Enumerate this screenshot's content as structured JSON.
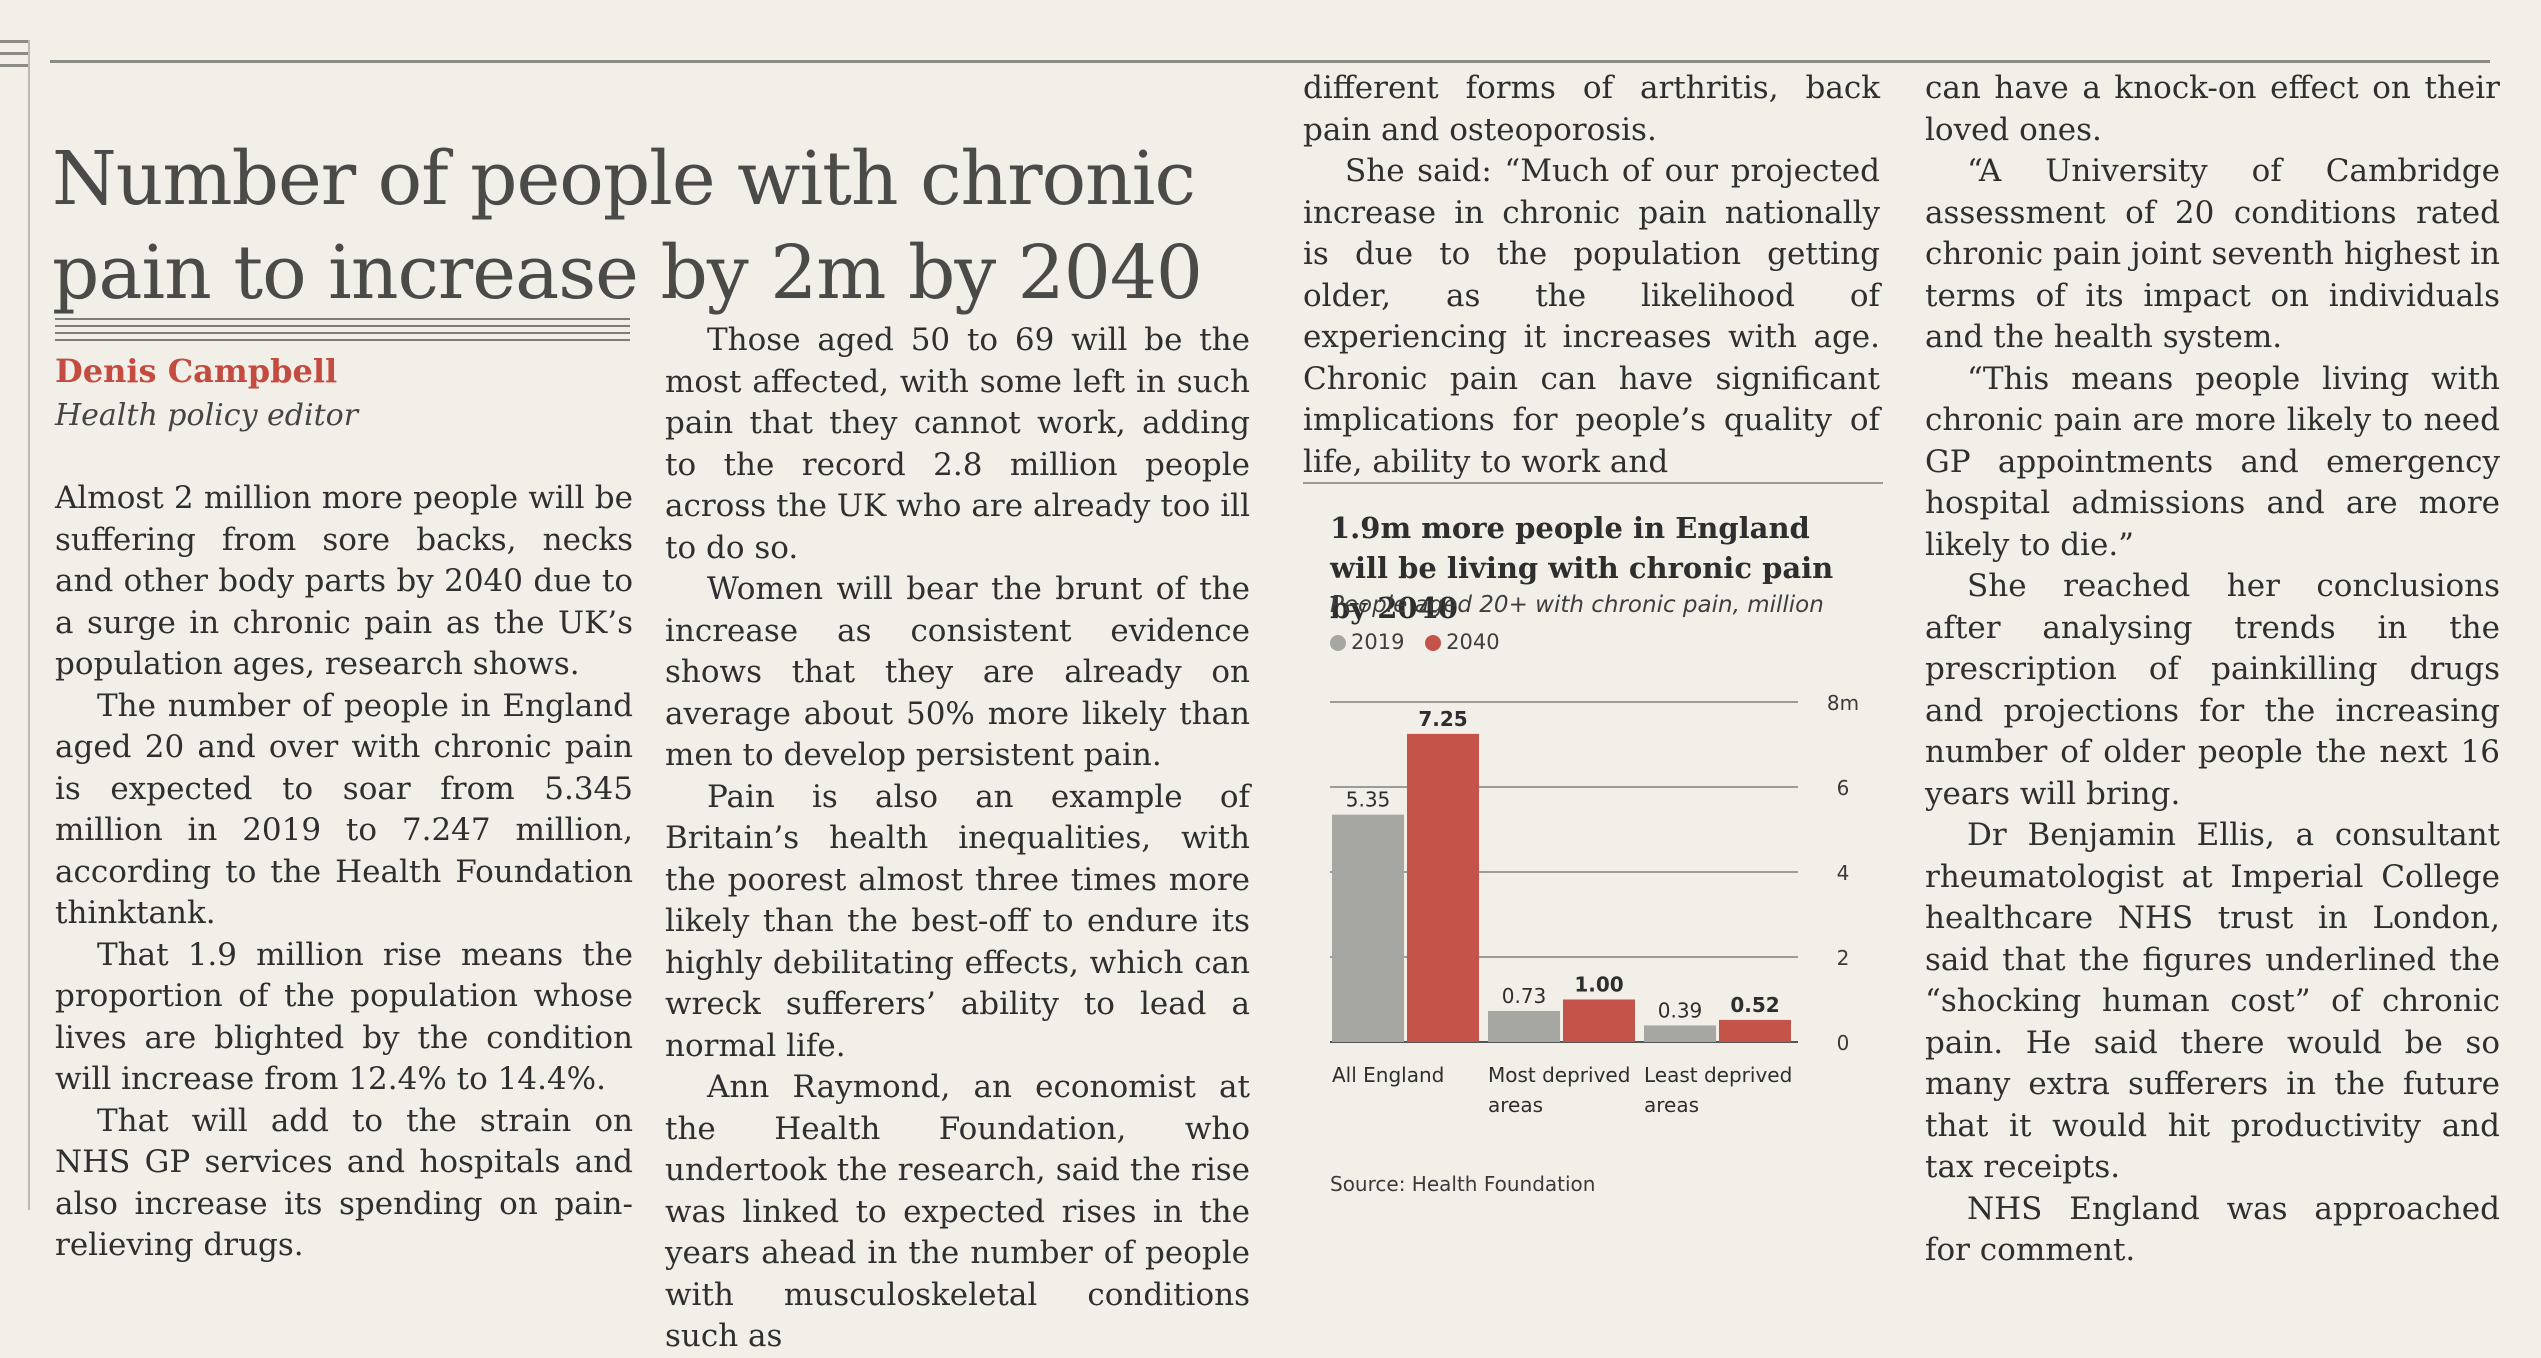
{
  "headline": [
    "Number of people with chronic",
    "pain to increase by 2m by 2040"
  ],
  "byline": {
    "author": "Denis Campbell",
    "role": "Health policy editor"
  },
  "columns": {
    "col1": [
      "Almost 2 million more people will be suffering from sore backs, necks and other body parts by 2040 due to a surge in chronic pain as the UK’s population ages, research shows.",
      "The number of people in England aged 20 and over with chronic pain is expected to soar from 5.345 million in 2019 to 7.247 million, according to the Health Foundation thinktank.",
      "That 1.9 million rise means the proportion of the population whose lives are blighted by the condition will increase from 12.4% to 14.4%.",
      "That will add to the strain on NHS GP services and hospitals and also increase its spending on pain-relieving drugs."
    ],
    "col2": [
      "Those aged 50 to 69 will be the most affected, with some left in such pain that they cannot work, adding to the record 2.8 million people across the UK who are already too ill to do so.",
      "Women will bear the brunt of the increase as consistent evidence shows that they are already on average about 50% more likely than men to develop persistent pain.",
      "Pain is also an example of Britain’s health inequalities, with the poorest almost three times more likely than the best-off to endure its highly debilitating effects, which can wreck sufferers’ ability to lead a normal life.",
      "Ann Raymond, an economist at the Health Foundation, who undertook the research, said the rise was linked to expected rises in the years ahead in the number of people with musculoskeletal conditions such as"
    ],
    "col3": [
      "different forms of arthritis, back pain and osteoporosis.",
      "She said: “Much of our projected increase in chronic pain nationally is due to the population getting older, as the likelihood of experiencing it increases with age. Chronic pain can have significant implications for people’s quality of life, ability to work and"
    ],
    "col4": [
      "can have a knock-on effect on their loved ones.",
      "“A University of Cambridge assessment of 20 conditions rated chronic pain joint seventh highest in terms of its impact on individuals and the health system.",
      "“This means people living with chronic pain are more likely to need GP appointments and emergency hospital admissions and are more likely to die.”",
      "She reached her conclusions after analysing trends in the prescription of painkilling drugs and projections for the increasing number of older people the next 16 years will bring.",
      "Dr Benjamin Ellis, a consultant rheumatologist at Imperial College healthcare NHS trust in London, said that the figures underlined the “shocking human cost” of chronic pain. He said there would be so many extra sufferers in the future that it would hit productivity and tax receipts.",
      "NHS England was approached for comment."
    ]
  },
  "chart_data": {
    "type": "bar",
    "title": "1.9m more people in England will be living with chronic pain by 2040",
    "subtitle": "People aged 20+ with chronic pain, million",
    "categories": [
      "All England",
      "Most deprived areas",
      "Least deprived areas"
    ],
    "category_lines": [
      [
        "All England"
      ],
      [
        "Most deprived",
        "areas"
      ],
      [
        "Least deprived",
        "areas"
      ]
    ],
    "series": [
      {
        "name": "2019",
        "values": [
          5.35,
          0.73,
          0.39
        ],
        "labels": [
          "5.35",
          "0.73",
          "0.39"
        ],
        "color": "#a6a6a3"
      },
      {
        "name": "2040",
        "values": [
          7.25,
          1.0,
          0.52
        ],
        "labels": [
          "7.25",
          "1.00",
          "0.52"
        ],
        "color": "#c4534a"
      }
    ],
    "ylim": [
      0,
      8
    ],
    "yticks": [
      0,
      2,
      4,
      6,
      8
    ],
    "ytick_labels": [
      "0",
      "2",
      "4",
      "6",
      "8m"
    ],
    "grid": true,
    "legend": "top-left",
    "source": "Source: Health Foundation"
  }
}
